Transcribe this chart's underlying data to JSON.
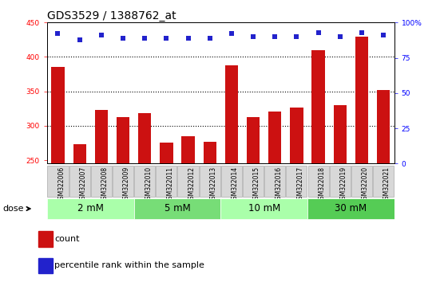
{
  "title": "GDS3529 / 1388762_at",
  "samples": [
    "GSM322006",
    "GSM322007",
    "GSM322008",
    "GSM322009",
    "GSM322010",
    "GSM322011",
    "GSM322012",
    "GSM322013",
    "GSM322014",
    "GSM322015",
    "GSM322016",
    "GSM322017",
    "GSM322018",
    "GSM322019",
    "GSM322020",
    "GSM322021"
  ],
  "counts": [
    385,
    273,
    323,
    313,
    318,
    276,
    285,
    277,
    388,
    313,
    321,
    326,
    410,
    330,
    430,
    352
  ],
  "percentiles": [
    92,
    88,
    91,
    89,
    89,
    89,
    89,
    89,
    92,
    90,
    90,
    90,
    93,
    90,
    93,
    91
  ],
  "dose_groups": [
    {
      "label": "2 mM",
      "start": 0,
      "end": 4,
      "color": "#aaffaa"
    },
    {
      "label": "5 mM",
      "start": 4,
      "end": 8,
      "color": "#77dd77"
    },
    {
      "label": "10 mM",
      "start": 8,
      "end": 12,
      "color": "#aaffaa"
    },
    {
      "label": "30 mM",
      "start": 12,
      "end": 16,
      "color": "#55cc55"
    }
  ],
  "bar_color": "#cc1111",
  "dot_color": "#2222cc",
  "ylim_left": [
    245,
    450
  ],
  "ylim_right": [
    0,
    100
  ],
  "yticks_left": [
    250,
    300,
    350,
    400,
    450
  ],
  "yticks_right": [
    0,
    25,
    50,
    75,
    100
  ],
  "grid_values": [
    300,
    350,
    400
  ],
  "bg_color": "#ffffff",
  "title_fontsize": 10,
  "tick_fontsize": 6.5,
  "label_fontsize": 8,
  "dose_label_fontsize": 8.5
}
